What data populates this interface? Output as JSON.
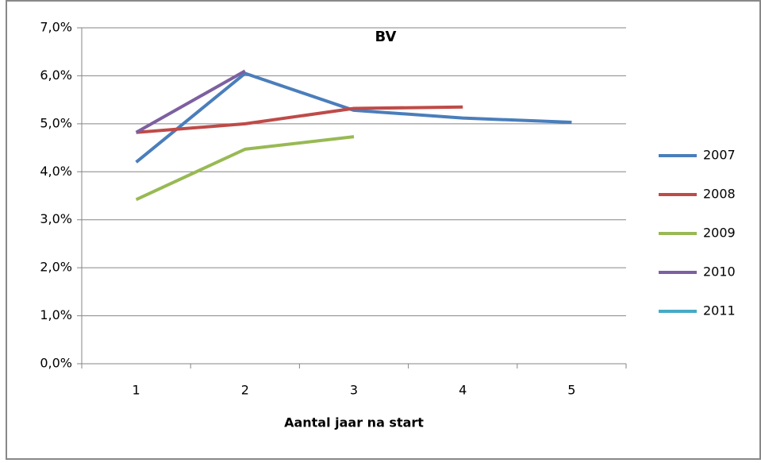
{
  "chart_data": {
    "type": "line",
    "title": "BV",
    "x_label": "Aantal jaar na start",
    "categories": [
      "1",
      "2",
      "3",
      "4",
      "5"
    ],
    "series": [
      {
        "name": "2007",
        "color": "#4a7ebb",
        "values": [
          4.2,
          6.05,
          5.28,
          5.12,
          5.03
        ]
      },
      {
        "name": "2008",
        "color": "#be4b48",
        "values": [
          4.82,
          5.0,
          5.32,
          5.35,
          null
        ]
      },
      {
        "name": "2009",
        "color": "#98b954",
        "values": [
          3.42,
          4.47,
          4.73,
          null,
          null
        ]
      },
      {
        "name": "2010",
        "color": "#7d60a0",
        "values": [
          4.82,
          6.1,
          null,
          null,
          null
        ]
      },
      {
        "name": "2011",
        "color": "#46aac5",
        "values": [
          null,
          null,
          null,
          null,
          null
        ]
      }
    ],
    "ylim": [
      0,
      7
    ],
    "yticks": [
      {
        "value": 0,
        "label": "0,0%"
      },
      {
        "value": 1,
        "label": "1,0%"
      },
      {
        "value": 2,
        "label": "2,0%"
      },
      {
        "value": 3,
        "label": "3,0%"
      },
      {
        "value": 4,
        "label": "4,0%"
      },
      {
        "value": 5,
        "label": "5,0%"
      },
      {
        "value": 6,
        "label": "6,0%"
      },
      {
        "value": 7,
        "label": "7,0%"
      }
    ],
    "grid": true,
    "legend": "right"
  }
}
